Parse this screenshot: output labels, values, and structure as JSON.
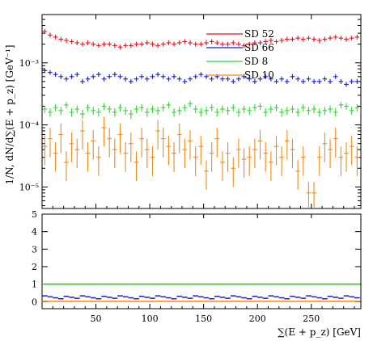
{
  "chart_data": [
    {
      "type": "scatter",
      "panel": "main",
      "xlim": [
        0,
        296
      ],
      "ylog": true,
      "ylim": [
        4.5e-06,
        0.006
      ],
      "ylabel": "1/N, dN/d∑(E + p_z) [GeV⁻¹]",
      "y_tick_labels": [
        "10⁻³",
        "10⁻⁴",
        "10⁻⁵"
      ],
      "legend_position": "top-right",
      "grid": false,
      "bin_width": 5,
      "series": [
        {
          "name": "SD 52",
          "color": "#e8141e",
          "x": [
            2.5,
            7.5,
            12.5,
            17.5,
            22.5,
            27.5,
            32.5,
            37.5,
            42.5,
            47.5,
            52.5,
            57.5,
            62.5,
            67.5,
            72.5,
            77.5,
            82.5,
            87.5,
            92.5,
            97.5,
            102.5,
            107.5,
            112.5,
            117.5,
            122.5,
            127.5,
            132.5,
            137.5,
            142.5,
            147.5,
            152.5,
            157.5,
            162.5,
            167.5,
            172.5,
            177.5,
            182.5,
            187.5,
            192.5,
            197.5,
            202.5,
            207.5,
            212.5,
            217.5,
            222.5,
            227.5,
            232.5,
            237.5,
            242.5,
            247.5,
            252.5,
            257.5,
            262.5,
            267.5,
            272.5,
            277.5,
            282.5,
            287.5,
            292.5
          ],
          "y": [
            0.0032,
            0.0028,
            0.0026,
            0.0024,
            0.0023,
            0.0022,
            0.0021,
            0.002,
            0.0021,
            0.002,
            0.0019,
            0.002,
            0.002,
            0.0019,
            0.0018,
            0.0019,
            0.0019,
            0.002,
            0.002,
            0.0021,
            0.002,
            0.0019,
            0.002,
            0.0021,
            0.002,
            0.0021,
            0.0022,
            0.0021,
            0.002,
            0.002,
            0.0021,
            0.0022,
            0.0021,
            0.002,
            0.002,
            0.0021,
            0.002,
            0.0019,
            0.002,
            0.0021,
            0.0021,
            0.0022,
            0.0023,
            0.0022,
            0.0023,
            0.0024,
            0.0024,
            0.0025,
            0.0024,
            0.0025,
            0.0024,
            0.0023,
            0.0024,
            0.0025,
            0.0026,
            0.0025,
            0.0024,
            0.0025,
            0.0026
          ]
        },
        {
          "name": "SD 66",
          "color": "#1a1ad9",
          "x": [
            2.5,
            7.5,
            12.5,
            17.5,
            22.5,
            27.5,
            32.5,
            37.5,
            42.5,
            47.5,
            52.5,
            57.5,
            62.5,
            67.5,
            72.5,
            77.5,
            82.5,
            87.5,
            92.5,
            97.5,
            102.5,
            107.5,
            112.5,
            117.5,
            122.5,
            127.5,
            132.5,
            137.5,
            142.5,
            147.5,
            152.5,
            157.5,
            162.5,
            167.5,
            172.5,
            177.5,
            182.5,
            187.5,
            192.5,
            197.5,
            202.5,
            207.5,
            212.5,
            217.5,
            222.5,
            227.5,
            232.5,
            237.5,
            242.5,
            247.5,
            252.5,
            257.5,
            262.5,
            267.5,
            272.5,
            277.5,
            282.5,
            287.5,
            292.5
          ],
          "y": [
            0.00075,
            0.0007,
            0.00065,
            0.0006,
            0.00055,
            0.0006,
            0.00065,
            0.0005,
            0.00055,
            0.0006,
            0.00065,
            0.00055,
            0.0006,
            0.00065,
            0.0006,
            0.00055,
            0.0005,
            0.00055,
            0.0006,
            0.00055,
            0.0006,
            0.00065,
            0.0006,
            0.00055,
            0.0006,
            0.00055,
            0.0005,
            0.00055,
            0.0006,
            0.00065,
            0.0006,
            0.00055,
            0.0006,
            0.00055,
            0.00055,
            0.0005,
            0.00055,
            0.0006,
            0.00055,
            0.0005,
            0.00055,
            0.0006,
            0.00055,
            0.0005,
            0.00055,
            0.0005,
            0.0006,
            0.00055,
            0.0005,
            0.00055,
            0.0005,
            0.0005,
            0.00055,
            0.0005,
            0.0006,
            0.0005,
            0.00045,
            0.0005,
            0.0005
          ]
        },
        {
          "name": "SD 8",
          "color": "#32d632",
          "x": [
            2.5,
            7.5,
            12.5,
            17.5,
            22.5,
            27.5,
            32.5,
            37.5,
            42.5,
            47.5,
            52.5,
            57.5,
            62.5,
            67.5,
            72.5,
            77.5,
            82.5,
            87.5,
            92.5,
            97.5,
            102.5,
            107.5,
            112.5,
            117.5,
            122.5,
            127.5,
            132.5,
            137.5,
            142.5,
            147.5,
            152.5,
            157.5,
            162.5,
            167.5,
            172.5,
            177.5,
            182.5,
            187.5,
            192.5,
            197.5,
            202.5,
            207.5,
            212.5,
            217.5,
            222.5,
            227.5,
            232.5,
            237.5,
            242.5,
            247.5,
            252.5,
            257.5,
            262.5,
            267.5,
            272.5,
            277.5,
            282.5,
            287.5,
            292.5
          ],
          "y": [
            0.00018,
            0.00016,
            0.00019,
            0.00017,
            0.00021,
            0.00016,
            0.00018,
            0.00015,
            0.00019,
            0.00017,
            0.00016,
            0.0002,
            0.00018,
            0.00016,
            0.00019,
            0.00017,
            0.00015,
            0.00018,
            0.00019,
            0.00016,
            0.00018,
            0.00017,
            0.00019,
            0.00021,
            0.00016,
            0.00017,
            0.00019,
            0.00022,
            0.00018,
            0.00016,
            0.00017,
            0.00019,
            0.00016,
            0.00018,
            0.00017,
            0.00019,
            0.00016,
            0.00018,
            0.00017,
            0.00019,
            0.0002,
            0.00016,
            0.00018,
            0.00019,
            0.00016,
            0.00017,
            0.00018,
            0.00016,
            0.00019,
            0.00017,
            0.00018,
            0.00016,
            0.00017,
            0.00018,
            0.00016,
            0.00021,
            0.0002,
            0.00017,
            0.00019
          ],
          "yerr": 2.5e-05
        },
        {
          "name": "SD 10",
          "color": "#f08a1e",
          "x": [
            2.5,
            7.5,
            12.5,
            17.5,
            22.5,
            27.5,
            32.5,
            37.5,
            42.5,
            47.5,
            52.5,
            57.5,
            62.5,
            67.5,
            72.5,
            77.5,
            82.5,
            87.5,
            92.5,
            97.5,
            102.5,
            107.5,
            112.5,
            117.5,
            122.5,
            127.5,
            132.5,
            137.5,
            142.5,
            147.5,
            152.5,
            157.5,
            162.5,
            167.5,
            172.5,
            177.5,
            182.5,
            187.5,
            192.5,
            197.5,
            202.5,
            207.5,
            212.5,
            217.5,
            222.5,
            227.5,
            232.5,
            237.5,
            242.5,
            247.5,
            252.5,
            257.5,
            262.5,
            267.5,
            272.5,
            277.5,
            282.5,
            287.5,
            292.5
          ],
          "y": [
            4.5e-05,
            6e-05,
            3.5e-05,
            7e-05,
            2.5e-05,
            5e-05,
            4e-05,
            8e-05,
            3.5e-05,
            5.5e-05,
            3e-05,
            9e-05,
            6e-05,
            4e-05,
            7e-05,
            3.5e-05,
            5e-05,
            2.5e-05,
            6e-05,
            4e-05,
            3e-05,
            8e-05,
            6e-05,
            4.5e-05,
            3.5e-05,
            7e-05,
            4e-05,
            5.5e-05,
            3e-05,
            4.5e-05,
            1.8e-05,
            3.5e-05,
            6e-05,
            2.5e-05,
            3.5e-05,
            2e-05,
            4e-05,
            2.8e-05,
            3e-05,
            4e-05,
            5.5e-05,
            3.5e-05,
            2.5e-05,
            4.5e-05,
            3e-05,
            5.5e-05,
            4e-05,
            1.8e-05,
            3e-05,
            8e-06,
            8e-06,
            3e-05,
            5e-05,
            4e-05,
            6e-05,
            3e-05,
            3.5e-05,
            4.5e-05,
            3e-05
          ],
          "yerr_frac": 0.5
        }
      ]
    },
    {
      "type": "scatter",
      "panel": "ratio",
      "xlim": [
        0,
        296
      ],
      "ylim": [
        -0.4,
        5
      ],
      "xlabel": "∑(E + p_z) [GeV]",
      "x_ticks": [
        50,
        100,
        150,
        200,
        250
      ],
      "x_tick_labels": [
        "50",
        "100",
        "150",
        "200",
        "250"
      ],
      "y_ticks": [
        0,
        1,
        2,
        3,
        4,
        5
      ],
      "y_tick_labels": [
        "0",
        "1",
        "2",
        "3",
        "4",
        "5"
      ],
      "grid": false,
      "series_ratios": [
        {
          "name": "SD 52",
          "color": "#e8141e",
          "value": 1.0
        },
        {
          "name": "SD 66",
          "color": "#1a1ad9",
          "value": 0.25
        },
        {
          "name": "SD 8",
          "color": "#32d632",
          "value": 1.0,
          "band": 0.04
        },
        {
          "name": "SD 10",
          "color": "#f08a1e",
          "value": 0.02
        }
      ]
    }
  ]
}
